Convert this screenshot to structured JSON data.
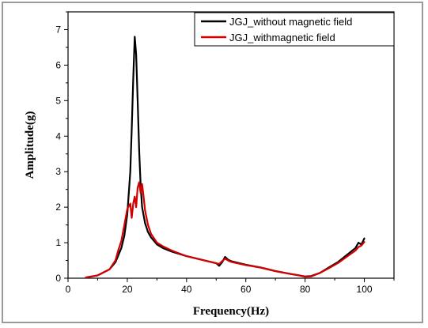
{
  "chart_data": {
    "type": "line",
    "xlabel": "Frequency(Hz)",
    "ylabel": "Amplitude(g)",
    "xlim": [
      0,
      110
    ],
    "ylim": [
      0,
      7.5
    ],
    "xticks": [
      "0",
      "20",
      "40",
      "60",
      "80",
      "100"
    ],
    "xtick_values": [
      0,
      20,
      40,
      60,
      80,
      100
    ],
    "yticks": [
      "0",
      "1",
      "2",
      "3",
      "4",
      "5",
      "6",
      "7"
    ],
    "ytick_values": [
      0,
      1,
      2,
      3,
      4,
      5,
      6,
      7
    ],
    "legend_position": "top-right",
    "series": [
      {
        "name": "JGJ_without magnetic field",
        "color": "#000000",
        "x": [
          6,
          10,
          14,
          16,
          18,
          19,
          20,
          21,
          21.5,
          22,
          22.5,
          23,
          23.5,
          24,
          24.5,
          25,
          26,
          27,
          28,
          30,
          32,
          35,
          40,
          45,
          50,
          51,
          52,
          53,
          54,
          55,
          60,
          65,
          70,
          75,
          78,
          80,
          82,
          85,
          88,
          91,
          94,
          97,
          98,
          99,
          100
        ],
        "y": [
          0.02,
          0.08,
          0.25,
          0.45,
          0.85,
          1.2,
          1.8,
          3.0,
          4.2,
          5.6,
          6.8,
          6.3,
          5.0,
          3.6,
          2.6,
          2.0,
          1.55,
          1.3,
          1.15,
          0.95,
          0.85,
          0.75,
          0.62,
          0.52,
          0.42,
          0.35,
          0.45,
          0.6,
          0.52,
          0.48,
          0.38,
          0.3,
          0.2,
          0.12,
          0.08,
          0.05,
          0.06,
          0.15,
          0.3,
          0.45,
          0.65,
          0.85,
          1.0,
          0.95,
          1.12
        ]
      },
      {
        "name": "JGJ_withmagnetic field",
        "color": "#d40000",
        "x": [
          6,
          10,
          14,
          16,
          17,
          18,
          19,
          20,
          21,
          21.5,
          22,
          22.5,
          23,
          23.5,
          24,
          24.5,
          25,
          25.5,
          26,
          27,
          28,
          30,
          32,
          35,
          40,
          45,
          50,
          51,
          52,
          53,
          54,
          55,
          60,
          65,
          70,
          75,
          78,
          80,
          82,
          85,
          88,
          91,
          94,
          97,
          98,
          99,
          100
        ],
        "y": [
          0.02,
          0.08,
          0.25,
          0.5,
          0.8,
          1.05,
          1.5,
          1.95,
          2.1,
          1.7,
          2.1,
          2.3,
          2.0,
          2.55,
          2.7,
          2.4,
          2.65,
          2.3,
          1.9,
          1.5,
          1.25,
          1.0,
          0.9,
          0.78,
          0.62,
          0.52,
          0.42,
          0.4,
          0.48,
          0.55,
          0.5,
          0.46,
          0.37,
          0.3,
          0.2,
          0.12,
          0.08,
          0.04,
          0.05,
          0.15,
          0.28,
          0.42,
          0.6,
          0.78,
          0.88,
          0.92,
          1.02
        ]
      }
    ]
  }
}
